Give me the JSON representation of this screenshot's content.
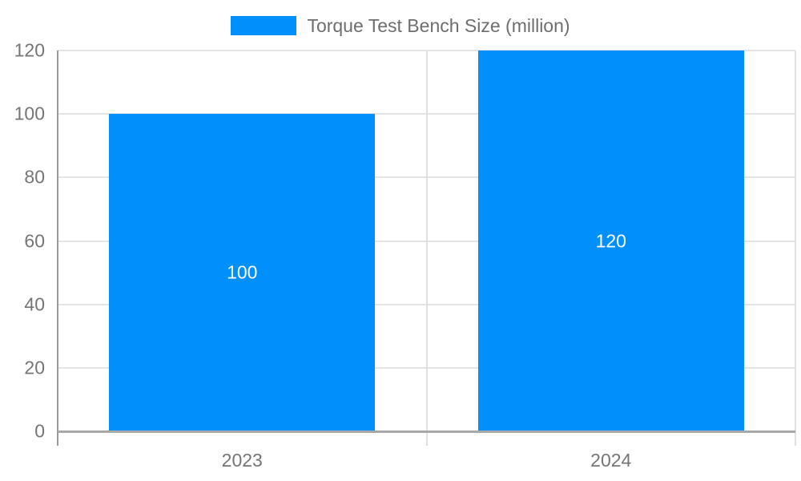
{
  "chart_data": {
    "type": "bar",
    "title": "Torque Test Bench Size (million)",
    "series_name": "Torque Test Bench Size (million)",
    "categories": [
      "2023",
      "2024"
    ],
    "values": [
      100,
      120
    ],
    "value_labels": [
      "100",
      "120"
    ],
    "xlabel": "",
    "ylabel": "",
    "ylim": [
      0,
      120
    ],
    "yticks": [
      0,
      20,
      40,
      60,
      80,
      100,
      120
    ],
    "grid": true,
    "legend_position": "top-center",
    "colors": {
      "bar": "#008ffb",
      "value_label": "#ffffff",
      "axis_label": "#757575",
      "legend_text": "#6e6e6e",
      "gridline": "#e4e4e4",
      "separator": "#e0e0e0",
      "axis_line": "#9a9a9a",
      "baseline": "#a8a8a8",
      "background": "#ffffff"
    }
  }
}
